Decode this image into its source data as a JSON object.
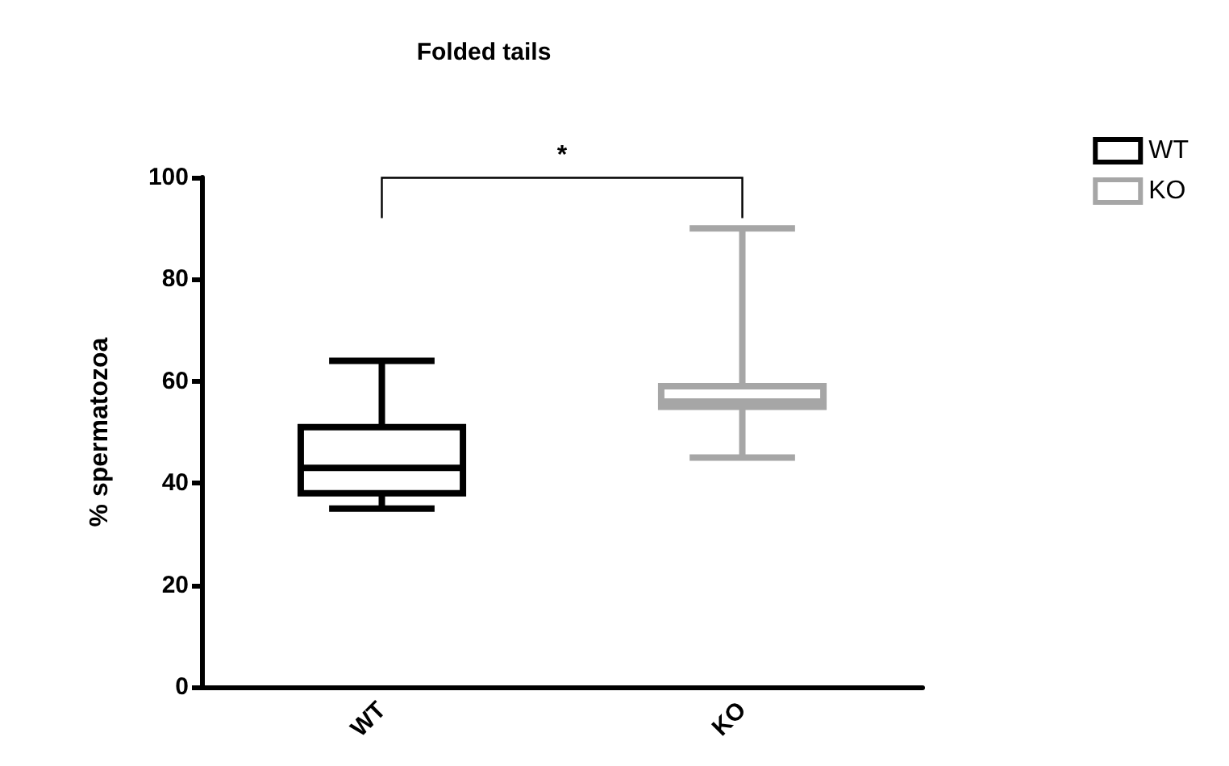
{
  "chart_data": {
    "type": "box",
    "title": "Folded tails",
    "ylabel": "% spermatozoa",
    "categories": [
      "WT",
      "KO"
    ],
    "series": [
      {
        "name": "WT",
        "color": "#000000",
        "boxes": [
          {
            "low": 35,
            "q1": 38,
            "median": 43,
            "q3": 51,
            "high": 64
          },
          null
        ]
      },
      {
        "name": "KO",
        "color": "#a6a6a6",
        "boxes": [
          null,
          {
            "low": 45,
            "q1": 55,
            "median": 56,
            "q3": 59,
            "high": 90
          }
        ]
      }
    ],
    "ylim": [
      0,
      100
    ],
    "yticks": [
      0,
      20,
      40,
      60,
      80,
      100
    ],
    "grid": false,
    "legend": "top right",
    "annotations": [
      "*"
    ]
  }
}
